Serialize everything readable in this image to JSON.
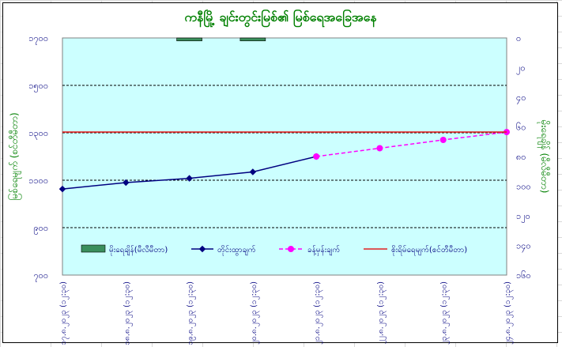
{
  "chart_data": {
    "type": "line",
    "title": "ကနီမြို့ ချင်းတွင်းမြစ်၏ မြစ်ရေအခြေအနေ",
    "ylabel_left": "မြစ်ရေမျက် (စင်တီမီတာ)",
    "ylabel_right": "မိုးရေချိန် (မီလီမီတာ)",
    "left_axis": {
      "min": 700,
      "max": 1700,
      "ticks": [
        "၁၇၀၀",
        "၁၅၀၀",
        "၁၃၀၀",
        "၁၁၀၀",
        "၉၀၀",
        "၇၀၀"
      ],
      "tick_values": [
        1700,
        1500,
        1300,
        1100,
        900,
        700
      ]
    },
    "right_axis": {
      "min": 0,
      "max": 160,
      "ticks": [
        "၀",
        "၂၀",
        "၄၀",
        "၆၀",
        "၈၀",
        "၁၀၀",
        "၁၂၀",
        "၁၄၀",
        "၁၆၀"
      ],
      "tick_values": [
        0,
        20,
        40,
        60,
        80,
        100,
        120,
        140,
        160
      ]
    },
    "categories": [
      "၁၇.၈.၂၀၂၃ (၁၂:၃၀)",
      "၁၈.၈.၂၀၂၃ (၁၂:၃၀)",
      "၁၉.၈.၂၀၂၃ (၁၂:၃၀)",
      "၂၀.၈.၂၀၂၃ (၁၂:၃၀)",
      "၂၁.၈.၂၀၂၃ (၁၂:၃၀)",
      "၂၂.၈.၂၀၂၃ (၁၂:၃၀)",
      "၂၃.၈.၂၀၂၃ (၁၂:၃၀)",
      "၂၄.၈.၂၀၂၃ (၁၂:၃၀)"
    ],
    "series": [
      {
        "name": "မိုးရေချိန်(မီလီမီတာ)",
        "type": "bar",
        "axis": "right",
        "color": "#3a8f5c",
        "values": [
          null,
          null,
          2,
          2,
          null,
          null,
          null,
          null
        ]
      },
      {
        "name": "တိုင်းထွာချက်",
        "type": "line",
        "axis": "left",
        "color": "#000080",
        "values": [
          1063,
          1090,
          1108,
          1135,
          1200,
          null,
          null,
          null
        ]
      },
      {
        "name": "ခန့်မှန်းချက်",
        "type": "line",
        "axis": "left",
        "color": "#ff00ff",
        "dashed": true,
        "values": [
          null,
          null,
          null,
          null,
          1200,
          1235,
          1270,
          1303
        ]
      },
      {
        "name": "စိုးရိမ်ရေမျက်(စင်တီမီတာ)",
        "type": "line",
        "axis": "left",
        "color": "#e02020",
        "values": [
          1303,
          1303,
          1303,
          1303,
          1303,
          1303,
          1303,
          1303
        ]
      }
    ],
    "legend_position": "bottom-inside",
    "grid": true,
    "plot_background": "#ccffff",
    "title_color": "#008000",
    "axis_label_color": "#008000",
    "tick_color": "#000080"
  }
}
